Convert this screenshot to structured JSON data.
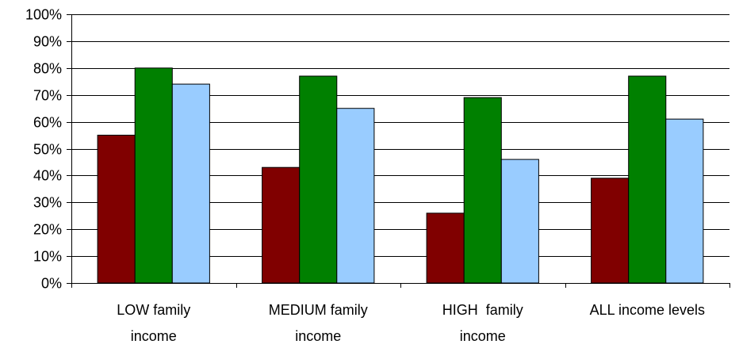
{
  "chart_data": {
    "type": "bar",
    "categories": [
      [
        "LOW family",
        "income"
      ],
      [
        "MEDIUM family",
        "income"
      ],
      [
        "HIGH  family",
        "income"
      ],
      [
        "ALL income levels"
      ]
    ],
    "series": [
      {
        "values": [
          55,
          43,
          26,
          39
        ],
        "color": "#800000"
      },
      {
        "values": [
          80,
          77,
          69,
          77
        ],
        "color": "#008000"
      },
      {
        "values": [
          74,
          65,
          46,
          61
        ],
        "color": "#99CCFF"
      }
    ],
    "ylim": [
      0,
      100
    ],
    "yticks": [
      0,
      10,
      20,
      30,
      40,
      50,
      60,
      70,
      80,
      90,
      100
    ],
    "ytick_labels": [
      "0%",
      "10%",
      "20%",
      "30%",
      "40%",
      "50%",
      "60%",
      "70%",
      "80%",
      "90%",
      "100%"
    ],
    "grid": true,
    "legend": "none"
  }
}
